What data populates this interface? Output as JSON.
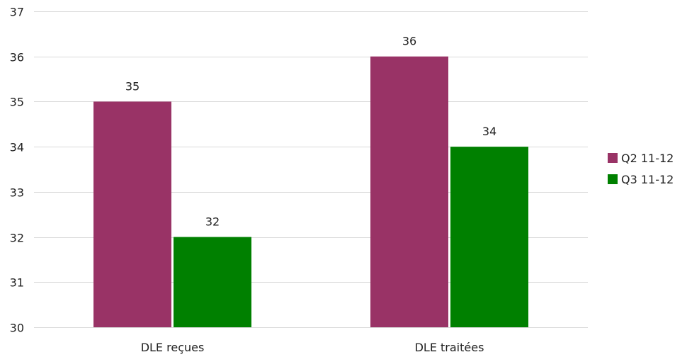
{
  "chart_data": {
    "type": "bar",
    "categories": [
      "DLE reçues",
      "DLE traitées"
    ],
    "series": [
      {
        "name": "Q2 11-12",
        "values": [
          35,
          36
        ],
        "color": "#993366"
      },
      {
        "name": "Q3 11-12",
        "values": [
          32,
          34
        ],
        "color": "#008000"
      }
    ],
    "ylim": [
      30,
      37
    ],
    "yticks": [
      30,
      31,
      32,
      33,
      34,
      35,
      36,
      37
    ],
    "grid": true,
    "legend_position": "right"
  }
}
